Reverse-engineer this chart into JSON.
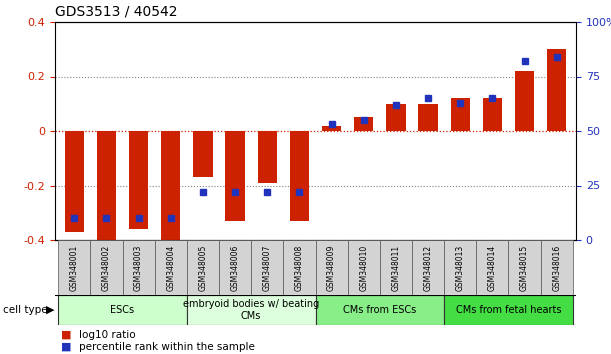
{
  "title": "GDS3513 / 40542",
  "samples": [
    "GSM348001",
    "GSM348002",
    "GSM348003",
    "GSM348004",
    "GSM348005",
    "GSM348006",
    "GSM348007",
    "GSM348008",
    "GSM348009",
    "GSM348010",
    "GSM348011",
    "GSM348012",
    "GSM348013",
    "GSM348014",
    "GSM348015",
    "GSM348016"
  ],
  "log10_ratio": [
    -0.37,
    -0.4,
    -0.36,
    -0.41,
    -0.17,
    -0.33,
    -0.19,
    -0.33,
    0.02,
    0.05,
    0.1,
    0.1,
    0.12,
    0.12,
    0.22,
    0.3
  ],
  "percentile_rank": [
    10,
    10,
    10,
    10,
    22,
    22,
    22,
    22,
    53,
    55,
    62,
    65,
    63,
    65,
    82,
    84
  ],
  "ylim_left": [
    -0.4,
    0.4
  ],
  "ylim_right": [
    0,
    100
  ],
  "yticks_left": [
    -0.4,
    -0.2,
    0.0,
    0.2,
    0.4
  ],
  "yticks_right": [
    0,
    25,
    50,
    75,
    100
  ],
  "ytick_labels_right": [
    "0",
    "25",
    "50",
    "75",
    "100%"
  ],
  "bar_color": "#cc2200",
  "dot_color": "#2233bb",
  "cell_type_groups": [
    {
      "label": "ESCs",
      "start": 0,
      "end": 3,
      "color": "#ccffcc"
    },
    {
      "label": "embryoid bodies w/ beating\nCMs",
      "start": 4,
      "end": 7,
      "color": "#ddffdd"
    },
    {
      "label": "CMs from ESCs",
      "start": 8,
      "end": 11,
      "color": "#88ee88"
    },
    {
      "label": "CMs from fetal hearts",
      "start": 12,
      "end": 15,
      "color": "#44dd44"
    }
  ],
  "legend_entries": [
    {
      "label": "log10 ratio",
      "color": "#cc2200"
    },
    {
      "label": "percentile rank within the sample",
      "color": "#2233bb"
    }
  ],
  "cell_type_label": "cell type",
  "background_color": "#ffffff",
  "bar_width": 0.6,
  "dot_size": 4.5
}
